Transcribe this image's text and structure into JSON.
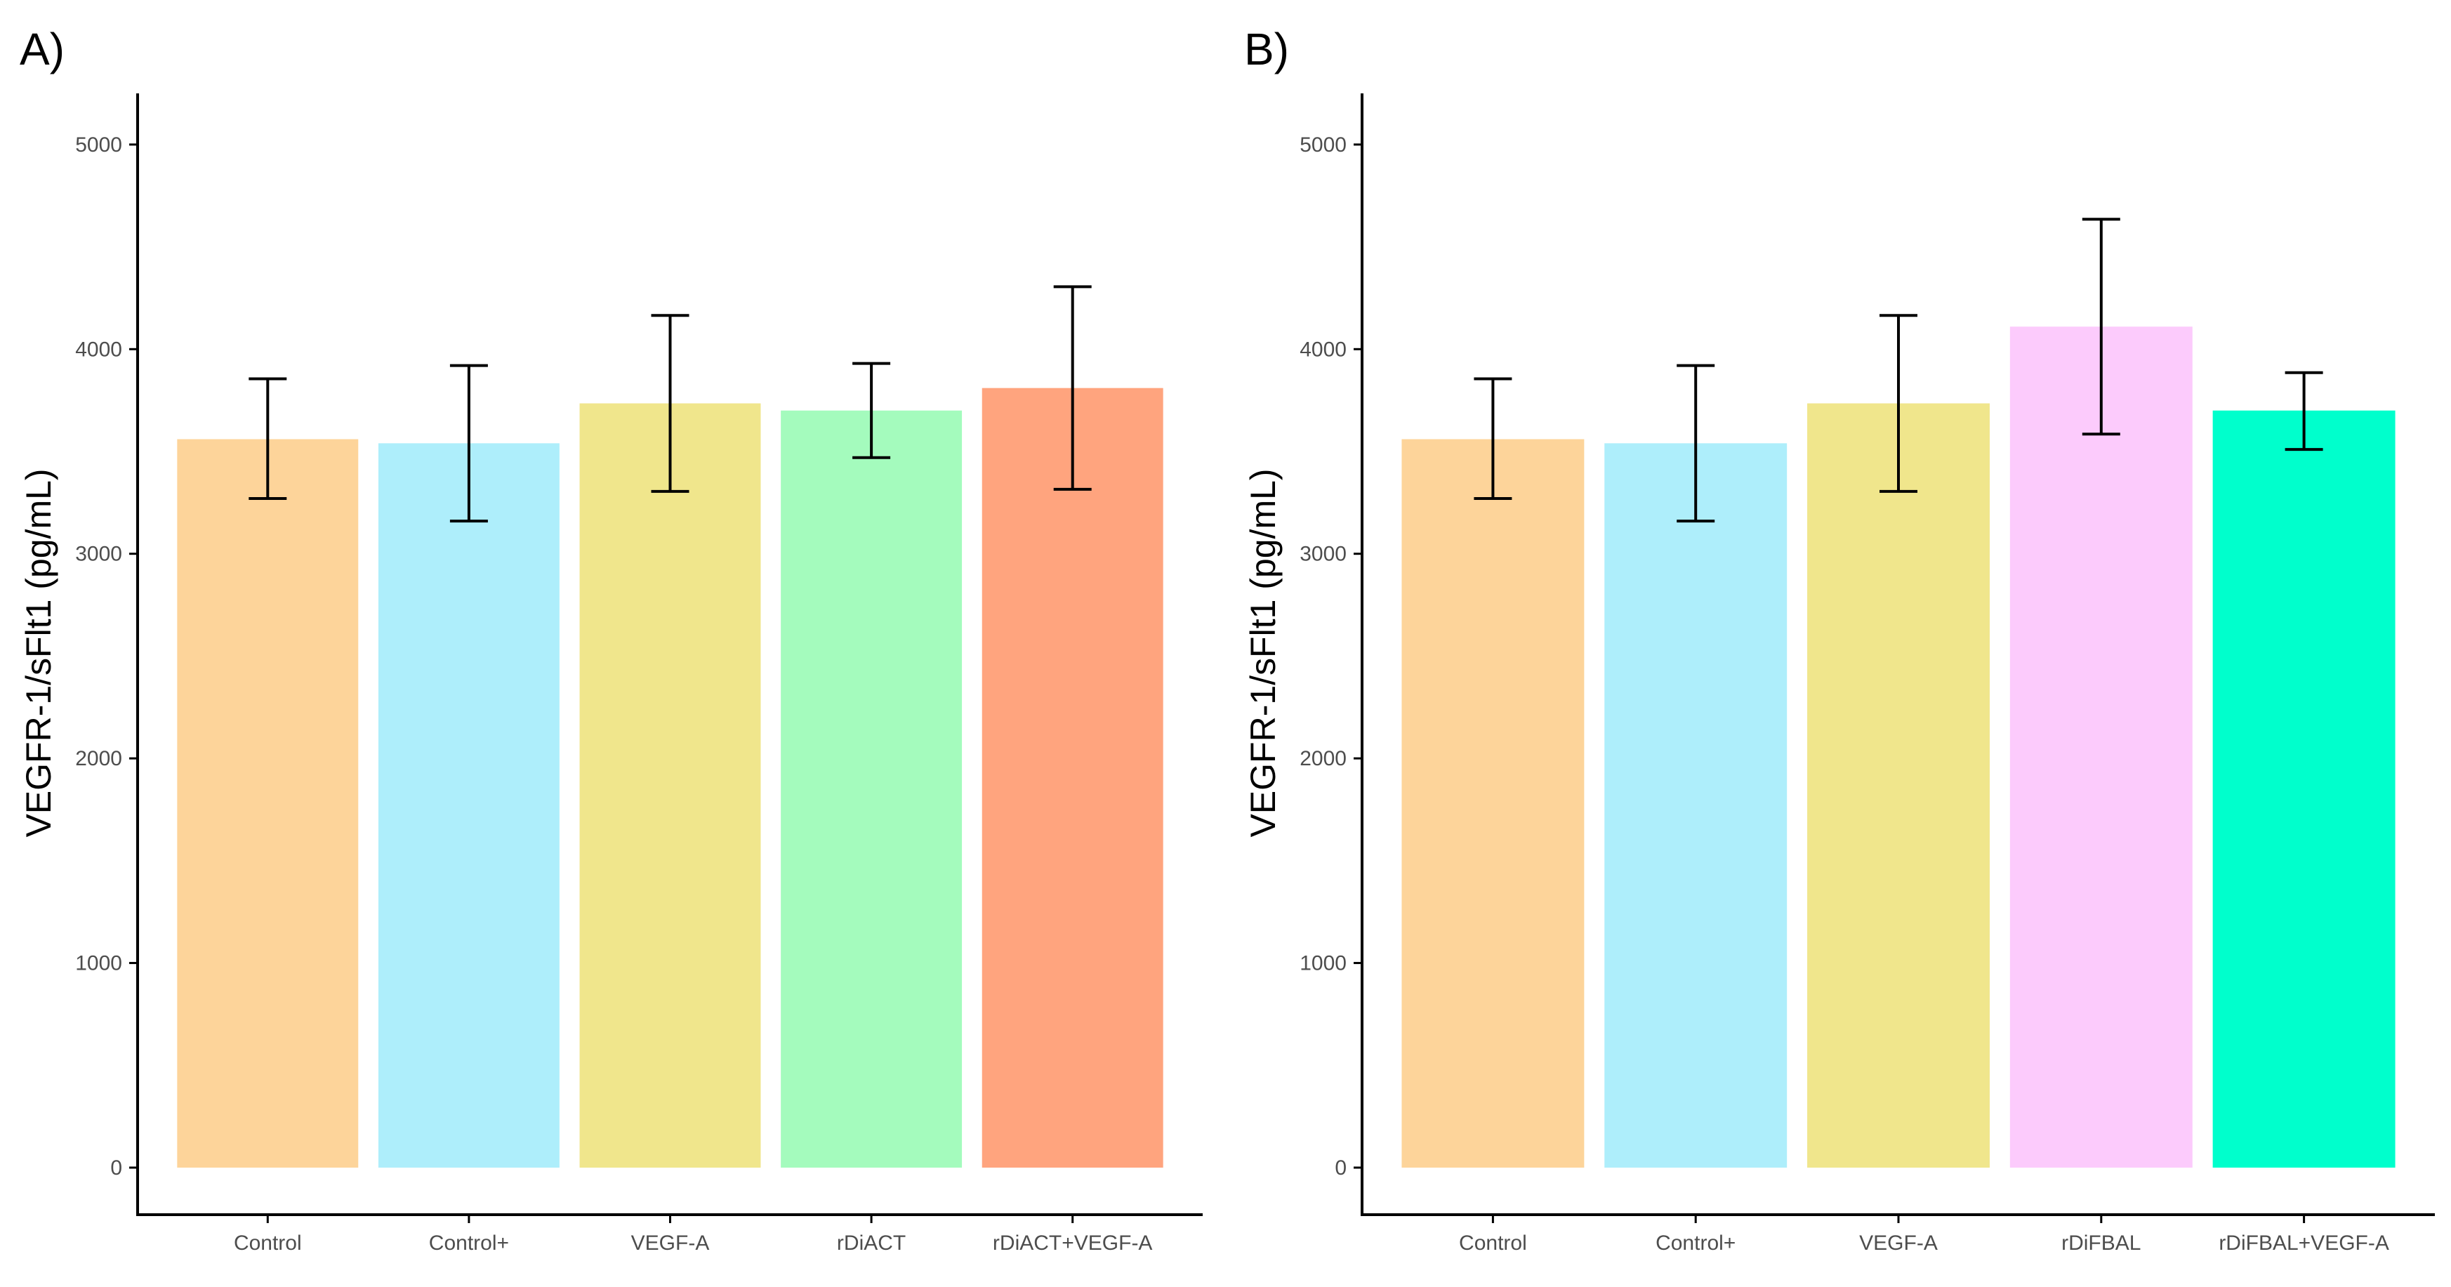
{
  "chart_data": [
    {
      "type": "bar",
      "panel_label": "A)",
      "ylabel": "VEGFR-1/sFlt1 (pg/mL)",
      "xlabel": "",
      "ylim": [
        -230,
        5250
      ],
      "yticks": [
        0,
        1000,
        2000,
        3000,
        4000,
        5000
      ],
      "ytick_labels": [
        "0",
        "1000",
        "2000",
        "3000",
        "4000",
        "5000"
      ],
      "categories": [
        "Control",
        "Control+",
        "VEGF-A",
        "rDiACT",
        "rDiACT+VEGF-A"
      ],
      "values": [
        3560,
        3540,
        3735,
        3700,
        3810
      ],
      "error_lower": [
        3270,
        3160,
        3305,
        3470,
        3315
      ],
      "error_upper": [
        3855,
        3920,
        4165,
        3930,
        4305
      ],
      "colors": [
        "#FDD49A",
        "#AEEEFB",
        "#F0E68C",
        "#A4FBBD",
        "#FFA47E"
      ]
    },
    {
      "type": "bar",
      "panel_label": "B)",
      "ylabel": "VEGFR-1/sFlt1 (pg/mL)",
      "xlabel": "",
      "ylim": [
        -230,
        5250
      ],
      "yticks": [
        0,
        1000,
        2000,
        3000,
        4000,
        5000
      ],
      "ytick_labels": [
        "0",
        "1000",
        "2000",
        "3000",
        "4000",
        "5000"
      ],
      "categories": [
        "Control",
        "Control+",
        "VEGF-A",
        "rDiFBAL",
        "rDiFBAL+VEGF-A"
      ],
      "values": [
        3560,
        3540,
        3735,
        4110,
        3700
      ],
      "error_lower": [
        3270,
        3160,
        3305,
        3585,
        3510
      ],
      "error_upper": [
        3855,
        3920,
        4165,
        4635,
        3885
      ],
      "colors": [
        "#FDD49A",
        "#AEEEFB",
        "#F0E68C",
        "#FCCBFC",
        "#00FFCC"
      ]
    }
  ]
}
